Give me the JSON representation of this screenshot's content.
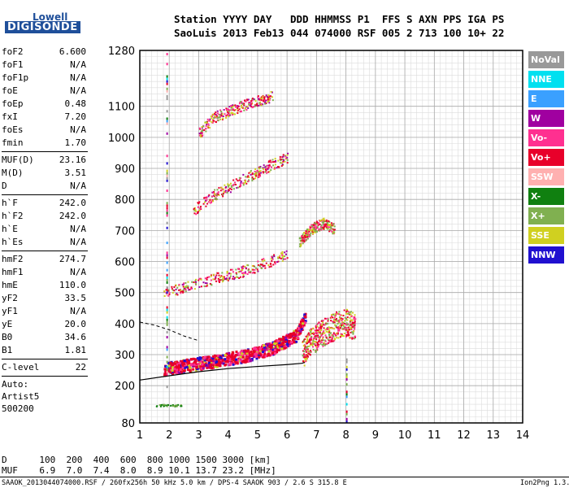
{
  "logo": {
    "line1": "Lowell",
    "line2": "DIGISONDE"
  },
  "header": {
    "line1": "Station YYYY DAY   DDD HHMMSS P1  FFS S AXN PPS IGA PS",
    "line2": "SaoLuis 2013 Feb13 044 074000 RSF 005 2 713 100 10+ 22"
  },
  "params": [
    {
      "label": "foF2",
      "value": "6.600"
    },
    {
      "label": "foF1",
      "value": "N/A"
    },
    {
      "label": "foF1p",
      "value": "N/A"
    },
    {
      "label": "foE",
      "value": "N/A"
    },
    {
      "label": "foEp",
      "value": "0.48"
    },
    {
      "label": "fxI",
      "value": "7.20"
    },
    {
      "label": "foEs",
      "value": "N/A"
    },
    {
      "label": "fmin",
      "value": "1.70"
    },
    {
      "sep": true
    },
    {
      "label": "MUF(D)",
      "value": "23.16"
    },
    {
      "label": "M(D)",
      "value": "3.51"
    },
    {
      "label": "D",
      "value": "N/A"
    },
    {
      "sep": true
    },
    {
      "label": "h`F",
      "value": "242.0"
    },
    {
      "label": "h`F2",
      "value": "242.0"
    },
    {
      "label": "h`E",
      "value": "N/A"
    },
    {
      "label": "h`Es",
      "value": "N/A"
    },
    {
      "sep": true
    },
    {
      "label": "hmF2",
      "value": "274.7"
    },
    {
      "label": "hmF1",
      "value": "N/A"
    },
    {
      "label": "hmE",
      "value": "110.0"
    },
    {
      "label": "yF2",
      "value": "33.5"
    },
    {
      "label": "yF1",
      "value": "N/A"
    },
    {
      "label": "yE",
      "value": "20.0"
    },
    {
      "label": "B0",
      "value": "34.6"
    },
    {
      "label": "B1",
      "value": "1.81"
    },
    {
      "sep": true
    },
    {
      "label": "C-level",
      "value": "22"
    },
    {
      "sep": true
    }
  ],
  "autoscale": [
    "Auto:",
    "Artist5",
    "500200"
  ],
  "legend": [
    {
      "label": "NoVal",
      "color": "#999999"
    },
    {
      "label": "NNE",
      "color": "#00e0f0"
    },
    {
      "label": "E",
      "color": "#3aa0ff"
    },
    {
      "label": "W",
      "color": "#a000a0"
    },
    {
      "label": "Vo-",
      "color": "#ff3090"
    },
    {
      "label": "Vo+",
      "color": "#e8002a"
    },
    {
      "label": "SSW",
      "color": "#ffb0b0"
    },
    {
      "label": "X-",
      "color": "#108010"
    },
    {
      "label": "X+",
      "color": "#80b050"
    },
    {
      "label": "SSE",
      "color": "#d0d020"
    },
    {
      "label": "NNW",
      "color": "#2010d0"
    }
  ],
  "footer": {
    "d_row": "D      100  200  400  600  800 1000 1500 3000 [km]",
    "muf_row": "MUF    6.9  7.0  7.4  8.0  8.9 10.1 13.7 23.2 [MHz]",
    "file": "SAAOK_2013044074000.RSF / 260fx256h 50 kHz 5.0 km / DPS-4 SAAOK 903 / 2.6 S 315.8 E",
    "version": "Ion2Png 1.3.17"
  },
  "chart_data": {
    "type": "scatter",
    "xlim": [
      1,
      14
    ],
    "ylim": [
      80,
      1280
    ],
    "x_ticks": [
      1,
      2,
      3,
      4,
      5,
      6,
      7,
      8,
      9,
      10,
      11,
      12,
      13,
      14
    ],
    "y_ticks": [
      80,
      200,
      300,
      400,
      500,
      600,
      700,
      800,
      900,
      1000,
      1100,
      1280
    ],
    "x_minor_step": 0.2,
    "y_minor_step": 20,
    "grid": true,
    "legend_position": "right",
    "echo_traces": [
      {
        "name": "O-trace F2 (1st hop)",
        "x": [
          1.8,
          2.5,
          3.5,
          4.5,
          5.5,
          6.3,
          6.6
        ],
        "y": [
          250,
          262,
          275,
          292,
          318,
          360,
          420
        ]
      },
      {
        "name": "F2 2nd hop",
        "x": [
          1.8,
          2.5,
          3.5,
          4.5,
          5.5,
          6.0
        ],
        "y": [
          495,
          512,
          540,
          565,
          600,
          620
        ]
      },
      {
        "name": "F2 3rd hop",
        "x": [
          2.8,
          3.5,
          4.5,
          5.5,
          6.0
        ],
        "y": [
          760,
          810,
          860,
          910,
          930
        ]
      },
      {
        "name": "F2 4th hop",
        "x": [
          3.0,
          3.5,
          4.5,
          5.5
        ],
        "y": [
          1010,
          1060,
          1100,
          1130
        ]
      },
      {
        "name": "X-trace F2",
        "x": [
          6.5,
          6.8,
          7.2,
          7.6,
          8.0,
          8.3
        ],
        "y": [
          290,
          330,
          360,
          380,
          390,
          380
        ]
      },
      {
        "name": "X 2nd hop",
        "x": [
          6.4,
          6.8,
          7.2,
          7.6
        ],
        "y": [
          660,
          700,
          720,
          700
        ]
      }
    ],
    "profile_line": {
      "x": [
        1,
        2.0,
        3.0,
        4.0,
        5.0,
        6.0,
        6.5,
        6.6
      ],
      "y": [
        218,
        232,
        245,
        255,
        262,
        268,
        272,
        275
      ]
    },
    "profile_dashed": {
      "x": [
        1.0,
        1.5,
        2.0,
        2.5,
        3.0
      ],
      "y": [
        405,
        395,
        380,
        360,
        345
      ]
    }
  }
}
